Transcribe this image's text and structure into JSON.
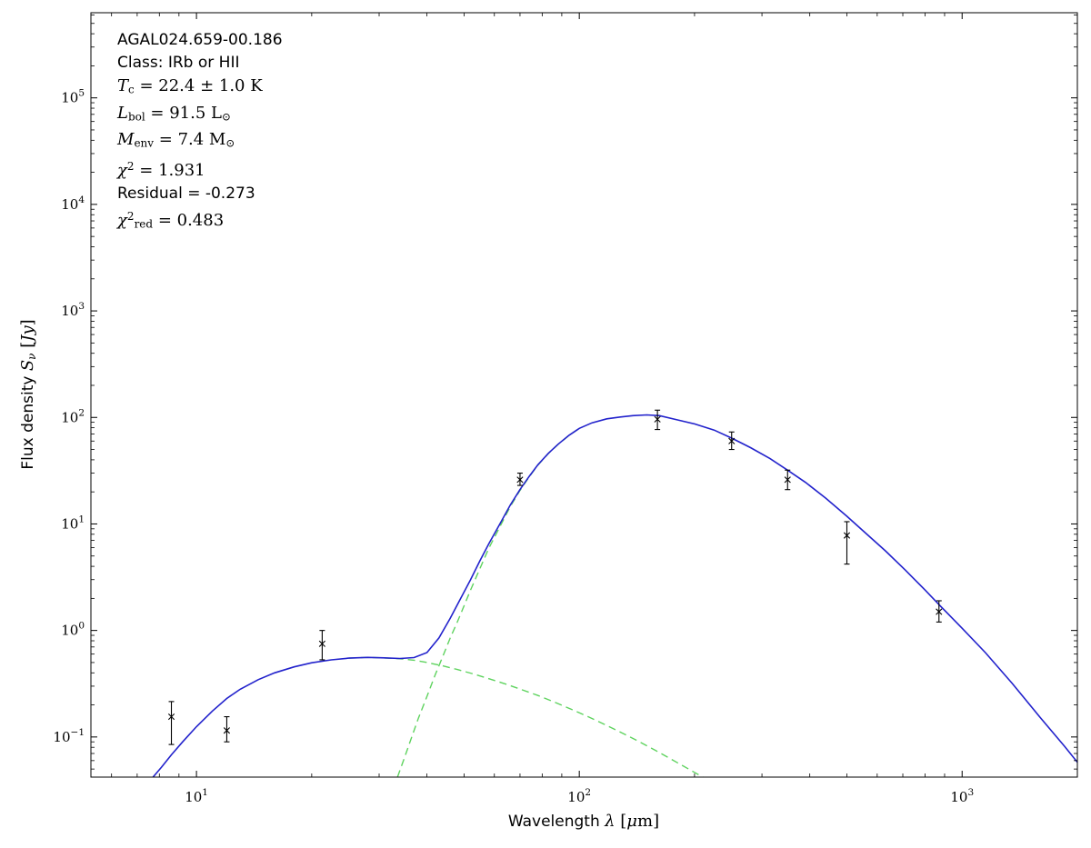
{
  "figure": {
    "background": "#ffffff",
    "frame_color": "#000000"
  },
  "annotation": {
    "lines": [
      {
        "name": "source-name",
        "segments": [
          {
            "t": "AGAL024.659-00.186",
            "f": "sans"
          }
        ]
      },
      {
        "name": "class",
        "segments": [
          {
            "t": "Class: IRb or HII",
            "f": "sans"
          }
        ]
      },
      {
        "name": "dust-temperature",
        "segments": [
          {
            "t": "T",
            "f": "mi"
          },
          {
            "t": "c",
            "f": "sub"
          },
          {
            "t": " = 22.4 ± 1.0 K",
            "f": "rm"
          }
        ]
      },
      {
        "name": "bolometric-luminosity",
        "segments": [
          {
            "t": "L",
            "f": "mi"
          },
          {
            "t": "bol",
            "f": "sub"
          },
          {
            "t": " = 91.5 L",
            "f": "rm"
          },
          {
            "t": "⊙",
            "f": "sub"
          }
        ]
      },
      {
        "name": "envelope-mass",
        "segments": [
          {
            "t": "M",
            "f": "mi"
          },
          {
            "t": "env",
            "f": "sub"
          },
          {
            "t": " = 7.4 M",
            "f": "rm"
          },
          {
            "t": "⊙",
            "f": "sub"
          }
        ]
      },
      {
        "name": "chi-squared",
        "segments": [
          {
            "t": "χ",
            "f": "mi"
          },
          {
            "t": "2",
            "f": "sup"
          },
          {
            "t": " = 1.931",
            "f": "rm"
          }
        ]
      },
      {
        "name": "residual",
        "segments": [
          {
            "t": "Residual = -0.273",
            "f": "sans"
          }
        ]
      },
      {
        "name": "reduced-chi-squared",
        "segments": [
          {
            "t": "χ",
            "f": "mi"
          },
          {
            "t": "2",
            "f": "sup"
          },
          {
            "t": "red",
            "f": "sub"
          },
          {
            "t": " = 0.483",
            "f": "rm"
          }
        ]
      }
    ]
  },
  "chart_data": {
    "type": "line",
    "title": "",
    "xlabel": "Wavelength λ [μm]",
    "ylabel": "Flux density Sν [Jy]",
    "xscale": "log",
    "yscale": "log",
    "xlim": [
      5.3,
      2000
    ],
    "ylim": [
      0.042,
      630000
    ],
    "grid": false,
    "legend": "none",
    "x_major_ticks": [
      {
        "v": 10,
        "exp": "1"
      },
      {
        "v": 100,
        "exp": "2"
      },
      {
        "v": 1000,
        "exp": "3"
      }
    ],
    "y_major_ticks": [
      {
        "v": 0.1,
        "exp": "−1"
      },
      {
        "v": 1,
        "exp": "0"
      },
      {
        "v": 10,
        "exp": "1"
      },
      {
        "v": 100,
        "exp": "2"
      },
      {
        "v": 1000,
        "exp": "3"
      },
      {
        "v": 10000,
        "exp": "4"
      },
      {
        "v": 100000,
        "exp": "5"
      }
    ],
    "xlabel_segments": [
      {
        "t": "Wavelength ",
        "f": "sans"
      },
      {
        "t": "λ",
        "f": "mi"
      },
      {
        "t": " [",
        "f": "rm"
      },
      {
        "t": "μ",
        "f": "mi"
      },
      {
        "t": "m",
        "f": "rm"
      },
      {
        "t": "]",
        "f": "rm"
      }
    ],
    "ylabel_segments": [
      {
        "t": "Flux density ",
        "f": "sans"
      },
      {
        "t": "S",
        "f": "mi"
      },
      {
        "t": "ν",
        "f": "subi"
      },
      {
        "t": " [",
        "f": "rm"
      },
      {
        "t": "Jy",
        "f": "mi"
      },
      {
        "t": "]",
        "f": "rm"
      }
    ],
    "series": [
      {
        "name": "warm-component-curve",
        "role": "component",
        "color": "#5fd35f",
        "dash": "8 5",
        "width": 1.4,
        "points": [
          [
            25,
            0.55
          ],
          [
            28,
            0.558
          ],
          [
            31,
            0.552
          ],
          [
            34,
            0.542
          ],
          [
            37,
            0.525
          ],
          [
            40,
            0.5
          ],
          [
            44,
            0.465
          ],
          [
            48,
            0.43
          ],
          [
            53,
            0.39
          ],
          [
            58,
            0.353
          ],
          [
            64,
            0.315
          ],
          [
            70,
            0.282
          ],
          [
            78,
            0.245
          ],
          [
            86,
            0.213
          ],
          [
            95,
            0.183
          ],
          [
            105,
            0.156
          ],
          [
            116,
            0.132
          ],
          [
            128,
            0.111
          ],
          [
            142,
            0.092
          ],
          [
            158,
            0.075
          ],
          [
            175,
            0.061
          ],
          [
            195,
            0.049
          ],
          [
            215,
            0.04
          ],
          [
            228,
            0.036
          ]
        ]
      },
      {
        "name": "cold-component-curve",
        "role": "component",
        "color": "#5fd35f",
        "dash": "8 5",
        "width": 1.4,
        "points": [
          [
            33.5,
            0.042
          ],
          [
            35,
            0.065
          ],
          [
            36.5,
            0.1
          ],
          [
            38,
            0.15
          ],
          [
            40,
            0.24
          ],
          [
            42,
            0.38
          ],
          [
            44,
            0.57
          ],
          [
            46,
            0.85
          ],
          [
            48,
            1.2
          ],
          [
            50,
            1.7
          ],
          [
            52,
            2.4
          ],
          [
            55,
            3.8
          ],
          [
            58,
            5.9
          ],
          [
            62,
            9.4
          ],
          [
            66,
            14.5
          ],
          [
            70,
            20.6
          ],
          [
            74,
            27.7
          ],
          [
            78,
            35.7
          ],
          [
            83,
            45.8
          ],
          [
            88,
            55.8
          ],
          [
            94,
            67.8
          ],
          [
            100,
            78.8
          ]
        ]
      },
      {
        "name": "total-model-curve",
        "role": "total",
        "color": "#2222cc",
        "dash": "",
        "width": 1.6,
        "points": [
          [
            7.7,
            0.042
          ],
          [
            8.1,
            0.052
          ],
          [
            8.6,
            0.068
          ],
          [
            9.2,
            0.09
          ],
          [
            10,
            0.125
          ],
          [
            11,
            0.175
          ],
          [
            12,
            0.23
          ],
          [
            13,
            0.28
          ],
          [
            14.5,
            0.345
          ],
          [
            16,
            0.4
          ],
          [
            18,
            0.455
          ],
          [
            20,
            0.497
          ],
          [
            22.5,
            0.53
          ],
          [
            25,
            0.55
          ],
          [
            28,
            0.558
          ],
          [
            31,
            0.553
          ],
          [
            34,
            0.545
          ],
          [
            37,
            0.556
          ],
          [
            40,
            0.62
          ],
          [
            43,
            0.85
          ],
          [
            46,
            1.3
          ],
          [
            49,
            2.0
          ],
          [
            52,
            3.0
          ],
          [
            55,
            4.5
          ],
          [
            58,
            6.5
          ],
          [
            62,
            10
          ],
          [
            66,
            15
          ],
          [
            70,
            21
          ],
          [
            74,
            28
          ],
          [
            78,
            36
          ],
          [
            83,
            46
          ],
          [
            88,
            56
          ],
          [
            94,
            68
          ],
          [
            100,
            79
          ],
          [
            108,
            89
          ],
          [
            118,
            97
          ],
          [
            128,
            101
          ],
          [
            138,
            104
          ],
          [
            150,
            105.5
          ],
          [
            162,
            104
          ],
          [
            180,
            95
          ],
          [
            200,
            87
          ],
          [
            225,
            76
          ],
          [
            250,
            64
          ],
          [
            280,
            52
          ],
          [
            315,
            41
          ],
          [
            350,
            32
          ],
          [
            390,
            24.5
          ],
          [
            440,
            17.5
          ],
          [
            500,
            11.8
          ],
          [
            560,
            8.2
          ],
          [
            630,
            5.6
          ],
          [
            710,
            3.7
          ],
          [
            800,
            2.4
          ],
          [
            870,
            1.75
          ],
          [
            1000,
            1.05
          ],
          [
            1150,
            0.62
          ],
          [
            1350,
            0.32
          ],
          [
            1600,
            0.152
          ],
          [
            1850,
            0.082
          ],
          [
            2000,
            0.058
          ]
        ]
      }
    ],
    "data_points": {
      "marker": "x",
      "color": "#000000",
      "points": [
        {
          "x": 8.6,
          "y": 0.155,
          "lo": 0.085,
          "hi": 0.215
        },
        {
          "x": 12,
          "y": 0.115,
          "lo": 0.09,
          "hi": 0.155
        },
        {
          "x": 21.3,
          "y": 0.75,
          "lo": 0.53,
          "hi": 1.0
        },
        {
          "x": 70,
          "y": 26,
          "lo": 23,
          "hi": 30
        },
        {
          "x": 160,
          "y": 96,
          "lo": 77,
          "hi": 117
        },
        {
          "x": 250,
          "y": 60,
          "lo": 50,
          "hi": 73
        },
        {
          "x": 350,
          "y": 26,
          "lo": 21,
          "hi": 32
        },
        {
          "x": 500,
          "y": 7.8,
          "lo": 4.2,
          "hi": 10.5
        },
        {
          "x": 870,
          "y": 1.5,
          "lo": 1.2,
          "hi": 1.9
        }
      ]
    }
  }
}
